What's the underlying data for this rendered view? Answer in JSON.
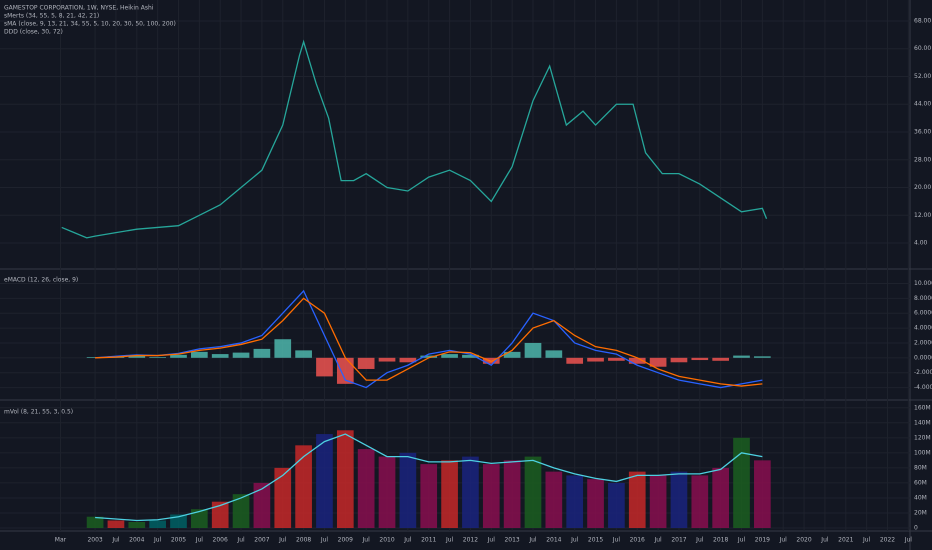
{
  "x_axis": {
    "xlim": [
      2000.72,
      2022.54
    ],
    "xticks": [
      {
        "value": 2002.17,
        "label": "Mar"
      },
      {
        "value": 2003,
        "label": "2003"
      },
      {
        "value": 2003.5,
        "label": "Jul"
      },
      {
        "value": 2004,
        "label": "2004"
      },
      {
        "value": 2004.5,
        "label": "Jul"
      },
      {
        "value": 2005,
        "label": "2005"
      },
      {
        "value": 2005.5,
        "label": "Jul"
      },
      {
        "value": 2006,
        "label": "2006"
      },
      {
        "value": 2006.5,
        "label": "Jul"
      },
      {
        "value": 2007,
        "label": "2007"
      },
      {
        "value": 2007.5,
        "label": "Jul"
      },
      {
        "value": 2008,
        "label": "2008"
      },
      {
        "value": 2008.5,
        "label": "Jul"
      },
      {
        "value": 2009,
        "label": "2009"
      },
      {
        "value": 2009.5,
        "label": "Jul"
      },
      {
        "value": 2010,
        "label": "2010"
      },
      {
        "value": 2010.5,
        "label": "Jul"
      },
      {
        "value": 2011,
        "label": "2011"
      },
      {
        "value": 2011.5,
        "label": "Jul"
      },
      {
        "value": 2012,
        "label": "2012"
      },
      {
        "value": 2012.5,
        "label": "Jul"
      },
      {
        "value": 2013,
        "label": "2013"
      },
      {
        "value": 2013.5,
        "label": "Jul"
      },
      {
        "value": 2014,
        "label": "2014"
      },
      {
        "value": 2014.5,
        "label": "Jul"
      },
      {
        "value": 2015,
        "label": "2015"
      },
      {
        "value": 2015.5,
        "label": "Jul"
      },
      {
        "value": 2016,
        "label": "2016"
      },
      {
        "value": 2016.5,
        "label": "Jul"
      },
      {
        "value": 2017,
        "label": "2017"
      },
      {
        "value": 2017.5,
        "label": "Jul"
      },
      {
        "value": 2018,
        "label": "2018"
      },
      {
        "value": 2018.5,
        "label": "Jul"
      },
      {
        "value": 2019,
        "label": "2019"
      },
      {
        "value": 2019.5,
        "label": "Jul"
      },
      {
        "value": 2020,
        "label": "2020"
      },
      {
        "value": 2020.5,
        "label": "Jul"
      },
      {
        "value": 2021,
        "label": "2021"
      },
      {
        "value": 2021.5,
        "label": "Jul"
      },
      {
        "value": 2022,
        "label": "2022"
      },
      {
        "value": 2022.5,
        "label": "Jul"
      }
    ]
  },
  "chart_data": [
    {
      "type": "line",
      "labels": [
        "GAMESTOP CORPORATION, 1W, NYSE, Heikin Ashi",
        "sMerts (34, 55, 5, 8, 21, 42, 21)",
        "sMA (close, 9, 13, 21, 34, 55, 5, 10, 20, 30, 50, 100, 200)",
        "DDD (close, 30, 72)"
      ],
      "x": [
        2002.2,
        2002.5,
        2002.8,
        2003.0,
        2003.5,
        2004.0,
        2004.5,
        2005.0,
        2005.5,
        2006.0,
        2006.5,
        2007.0,
        2007.5,
        2007.9,
        2008.0,
        2008.3,
        2008.6,
        2008.9,
        2009.2,
        2009.5,
        2010.0,
        2010.5,
        2011.0,
        2011.5,
        2012.0,
        2012.5,
        2013.0,
        2013.5,
        2013.9,
        2014.3,
        2014.7,
        2015.0,
        2015.5,
        2015.9,
        2016.2,
        2016.6,
        2017.0,
        2017.5,
        2018.0,
        2018.5,
        2019.0,
        2019.1
      ],
      "series": [
        {
          "color": "#26a69a",
          "values": [
            8.5,
            7,
            5.5,
            6,
            7,
            8,
            8.5,
            9,
            12,
            15,
            20,
            25,
            38,
            58,
            62,
            50,
            40,
            22,
            22,
            24,
            20,
            19,
            23,
            25,
            22,
            16,
            26,
            45,
            55,
            38,
            42,
            38,
            44,
            44,
            30,
            24,
            24,
            21,
            17,
            13,
            14,
            11
          ]
        }
      ],
      "ylim": [
        2,
        70
      ],
      "yticks": [
        {
          "value": 4,
          "label": "4.00"
        },
        {
          "value": 12,
          "label": "12.00"
        },
        {
          "value": 20,
          "label": "20.00"
        },
        {
          "value": 28,
          "label": "28.00"
        },
        {
          "value": 36,
          "label": "36.00"
        },
        {
          "value": 44,
          "label": "44.00"
        },
        {
          "value": 52,
          "label": "52.00"
        },
        {
          "value": 60,
          "label": "60.00"
        },
        {
          "value": 68,
          "label": "68.00"
        }
      ]
    },
    {
      "type": "bar",
      "labels": [
        "eMACD (12, 26, close, 9)"
      ],
      "x": [
        2003,
        2003.5,
        2004,
        2004.5,
        2005,
        2005.5,
        2006,
        2006.5,
        2007,
        2007.5,
        2008,
        2008.5,
        2009,
        2009.5,
        2010,
        2010.5,
        2011,
        2011.5,
        2012,
        2012.5,
        2013,
        2013.5,
        2014,
        2014.5,
        2015,
        2015.5,
        2016,
        2016.5,
        2017,
        2017.5,
        2018,
        2018.5,
        2019
      ],
      "series": [
        {
          "style": "bar",
          "color": "#4db6ac",
          "neg_color": "#ef5350",
          "values": [
            0.1,
            0.2,
            0.3,
            0.1,
            0.4,
            0.8,
            0.5,
            0.7,
            1.2,
            2.5,
            1.0,
            -2.5,
            -3.5,
            -1.5,
            -0.5,
            -0.6,
            0.3,
            0.5,
            0.4,
            -0.8,
            0.8,
            2.0,
            1.0,
            -0.8,
            -0.5,
            -0.4,
            -0.8,
            -1.2,
            -0.6,
            -0.3,
            -0.4,
            0.3,
            0.2
          ]
        },
        {
          "style": "line",
          "color": "#2962ff",
          "values": [
            0,
            0.2,
            0.4,
            0.3,
            0.6,
            1.2,
            1.5,
            2,
            3,
            6,
            9,
            3,
            -3,
            -4,
            -2,
            -1,
            0.5,
            1,
            0.5,
            -1,
            2,
            6,
            5,
            2,
            1,
            0.5,
            -1,
            -2,
            -3,
            -3.5,
            -4,
            -3.5,
            -3
          ]
        },
        {
          "style": "line",
          "color": "#ff6d00",
          "values": [
            0,
            0.1,
            0.3,
            0.3,
            0.5,
            1,
            1.3,
            1.8,
            2.5,
            5,
            8,
            6,
            0,
            -3,
            -3,
            -1.5,
            0,
            0.8,
            0.7,
            -0.5,
            1,
            4,
            5,
            3,
            1.5,
            1,
            0,
            -1.5,
            -2.5,
            -3,
            -3.5,
            -3.8,
            -3.5
          ]
        }
      ],
      "ylim": [
        -5,
        11
      ],
      "yticks": [
        {
          "value": -4,
          "label": "-4.0000"
        },
        {
          "value": -2,
          "label": "-2.0000"
        },
        {
          "value": 0,
          "label": "0.0000"
        },
        {
          "value": 2,
          "label": "2.0000"
        },
        {
          "value": 4,
          "label": "4.0000"
        },
        {
          "value": 6,
          "label": "6.0000"
        },
        {
          "value": 8,
          "label": "8.0000"
        },
        {
          "value": 10,
          "label": "10.0000"
        }
      ]
    },
    {
      "type": "bar",
      "labels": [
        "mVol (8, 21, 55, 3, 0.5)"
      ],
      "x": [
        2003,
        2003.5,
        2004,
        2004.5,
        2005,
        2005.5,
        2006,
        2006.5,
        2007,
        2007.5,
        2008,
        2008.5,
        2009,
        2009.5,
        2010,
        2010.5,
        2011,
        2011.5,
        2012,
        2012.5,
        2013,
        2013.5,
        2014,
        2014.5,
        2015,
        2015.5,
        2016,
        2016.5,
        2017,
        2017.5,
        2018,
        2018.5,
        2019
      ],
      "series": [
        {
          "style": "bar",
          "colors": [
            "#1b5e20",
            "#c62828",
            "#1b5e20",
            "#006064",
            "#006064",
            "#1b5e20",
            "#c62828",
            "#1b5e20",
            "#880e4f",
            "#c62828",
            "#c62828",
            "#1a237e",
            "#c62828",
            "#880e4f",
            "#880e4f",
            "#1a237e",
            "#880e4f",
            "#c62828",
            "#1a237e",
            "#880e4f",
            "#880e4f",
            "#1b5e20",
            "#880e4f",
            "#1a237e",
            "#880e4f",
            "#1a237e",
            "#c62828",
            "#880e4f",
            "#1a237e",
            "#880e4f",
            "#880e4f",
            "#1b5e20",
            "#880e4f"
          ],
          "values": [
            15000000,
            10000000,
            8000000,
            10000000,
            18000000,
            25000000,
            35000000,
            45000000,
            60000000,
            80000000,
            110000000,
            125000000,
            130000000,
            105000000,
            95000000,
            100000000,
            85000000,
            90000000,
            95000000,
            85000000,
            90000000,
            95000000,
            75000000,
            70000000,
            65000000,
            60000000,
            75000000,
            70000000,
            75000000,
            70000000,
            80000000,
            120000000,
            90000000
          ]
        },
        {
          "style": "line",
          "color": "#4dd0e1",
          "values": [
            14000000,
            12000000,
            10000000,
            11000000,
            15000000,
            22000000,
            30000000,
            40000000,
            52000000,
            70000000,
            95000000,
            115000000,
            125000000,
            110000000,
            95000000,
            95000000,
            88000000,
            88000000,
            90000000,
            86000000,
            88000000,
            90000000,
            80000000,
            72000000,
            66000000,
            62000000,
            70000000,
            70000000,
            72000000,
            72000000,
            78000000,
            100000000,
            95000000
          ]
        }
      ],
      "ylim": [
        0,
        165000000
      ],
      "yticks": [
        {
          "value": 0,
          "label": "0"
        },
        {
          "value": 20000000,
          "label": "20M"
        },
        {
          "value": 40000000,
          "label": "40M"
        },
        {
          "value": 60000000,
          "label": "60M"
        },
        {
          "value": 80000000,
          "label": "80M"
        },
        {
          "value": 100000000,
          "label": "100M"
        },
        {
          "value": 120000000,
          "label": "120M"
        },
        {
          "value": 140000000,
          "label": "140M"
        },
        {
          "value": 160000000,
          "label": "160M"
        }
      ]
    }
  ]
}
